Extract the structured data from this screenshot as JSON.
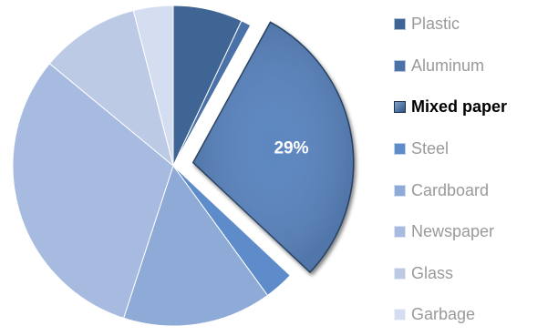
{
  "chart_data": {
    "type": "pie",
    "categories": [
      "Plastic",
      "Aluminum",
      "Mixed paper",
      "Steel",
      "Cardboard",
      "Newspaper",
      "Glass",
      "Garbage"
    ],
    "values": [
      7,
      1,
      29,
      3,
      15,
      31,
      10,
      4
    ],
    "colors": [
      "#3e6593",
      "#4a72a8",
      "#5b86c0",
      "#5e8ccb",
      "#8eaad6",
      "#a6bbdf",
      "#bccae6",
      "#d5def1"
    ],
    "start_angle_deg": 0,
    "direction": "clockwise",
    "exploded": "Mixed paper",
    "data_labels": [
      {
        "category": "Mixed paper",
        "text": "29%"
      }
    ],
    "legend_position": "right",
    "highlighted_legend": "Mixed paper",
    "title": ""
  }
}
